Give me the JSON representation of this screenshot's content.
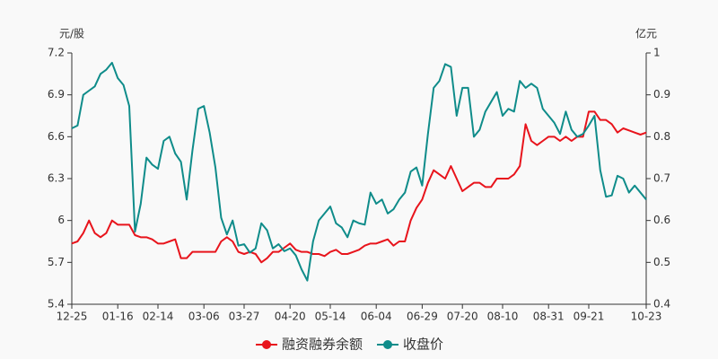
{
  "chart_data": {
    "type": "line",
    "y_label": "元/股",
    "y2_label": "亿元",
    "categories": [
      "12-25",
      null,
      null,
      null,
      null,
      null,
      null,
      null,
      "01-16",
      null,
      null,
      null,
      null,
      null,
      null,
      "02-14",
      null,
      null,
      null,
      null,
      null,
      null,
      null,
      "03-06",
      null,
      null,
      null,
      null,
      null,
      null,
      "03-27",
      null,
      null,
      null,
      null,
      null,
      null,
      null,
      "04-20",
      null,
      null,
      null,
      null,
      null,
      null,
      "05-14",
      null,
      null,
      null,
      null,
      null,
      null,
      null,
      "06-04",
      null,
      null,
      null,
      null,
      null,
      null,
      null,
      "06-29",
      null,
      null,
      null,
      null,
      null,
      null,
      "07-20",
      null,
      null,
      null,
      null,
      null,
      null,
      "08-10",
      null,
      null,
      null,
      null,
      null,
      null,
      null,
      "08-31",
      null,
      null,
      null,
      null,
      null,
      null,
      "09-21",
      null,
      null,
      null,
      null,
      null,
      null,
      null,
      null,
      null,
      "10-23"
    ],
    "series": [
      {
        "name": "融资融券余额",
        "color": "#e8141c",
        "axis": "y2",
        "values": [
          0.545,
          0.55,
          0.57,
          0.6,
          0.57,
          0.56,
          0.57,
          0.6,
          0.59,
          0.59,
          0.59,
          0.565,
          0.56,
          0.56,
          0.555,
          0.545,
          0.545,
          0.55,
          0.555,
          0.51,
          0.51,
          0.525,
          0.525,
          0.525,
          0.525,
          0.525,
          0.55,
          0.56,
          0.55,
          0.525,
          0.52,
          0.525,
          0.52,
          0.5,
          0.51,
          0.525,
          0.525,
          0.535,
          0.545,
          0.53,
          0.525,
          0.525,
          0.52,
          0.52,
          0.515,
          0.525,
          0.53,
          0.52,
          0.52,
          0.525,
          0.53,
          0.54,
          0.545,
          0.545,
          0.55,
          0.555,
          0.54,
          0.55,
          0.55,
          0.6,
          0.63,
          0.65,
          0.69,
          0.72,
          0.71,
          0.7,
          0.73,
          0.7,
          0.67,
          0.68,
          0.69,
          0.69,
          0.68,
          0.68,
          0.7,
          0.7,
          0.7,
          0.71,
          0.73,
          0.83,
          0.79,
          0.78,
          0.79,
          0.8,
          0.8,
          0.79,
          0.8,
          0.79,
          0.8,
          0.8,
          0.86,
          0.86,
          0.84,
          0.84,
          0.83,
          0.81,
          0.82,
          0.815,
          0.81,
          0.805,
          0.81
        ]
      },
      {
        "name": "收盘价",
        "color": "#0f8c8a",
        "values": [
          6.66,
          6.68,
          6.9,
          6.93,
          6.96,
          7.05,
          7.08,
          7.13,
          7.02,
          6.97,
          6.82,
          5.92,
          6.12,
          6.45,
          6.4,
          6.37,
          6.57,
          6.6,
          6.48,
          6.42,
          6.15,
          6.5,
          6.8,
          6.82,
          6.63,
          6.38,
          6.02,
          5.9,
          6.0,
          5.82,
          5.83,
          5.77,
          5.8,
          5.98,
          5.93,
          5.8,
          5.83,
          5.78,
          5.8,
          5.75,
          5.65,
          5.57,
          5.85,
          6.0,
          6.05,
          6.1,
          5.98,
          5.95,
          5.88,
          6.0,
          5.98,
          5.97,
          6.2,
          6.12,
          6.15,
          6.05,
          6.08,
          6.15,
          6.2,
          6.35,
          6.38,
          6.25,
          6.62,
          6.95,
          7.0,
          7.12,
          7.1,
          6.75,
          6.95,
          6.95,
          6.6,
          6.65,
          6.78,
          6.85,
          6.92,
          6.75,
          6.8,
          6.78,
          7.0,
          6.95,
          6.98,
          6.95,
          6.8,
          6.75,
          6.7,
          6.62,
          6.78,
          6.65,
          6.6,
          6.62,
          6.68,
          6.75,
          6.36,
          6.17,
          6.18,
          6.32,
          6.3,
          6.2,
          6.25,
          6.2,
          6.15
        ]
      }
    ],
    "ylim": [
      5.4,
      7.2
    ],
    "yticks": [
      5.4,
      5.7,
      6,
      6.3,
      6.6,
      6.9,
      7.2
    ],
    "y2lim": [
      0.4,
      1
    ],
    "y2ticks": [
      0.4,
      0.5,
      0.6,
      0.7,
      0.8,
      0.9,
      1
    ],
    "legend": "bottom"
  }
}
